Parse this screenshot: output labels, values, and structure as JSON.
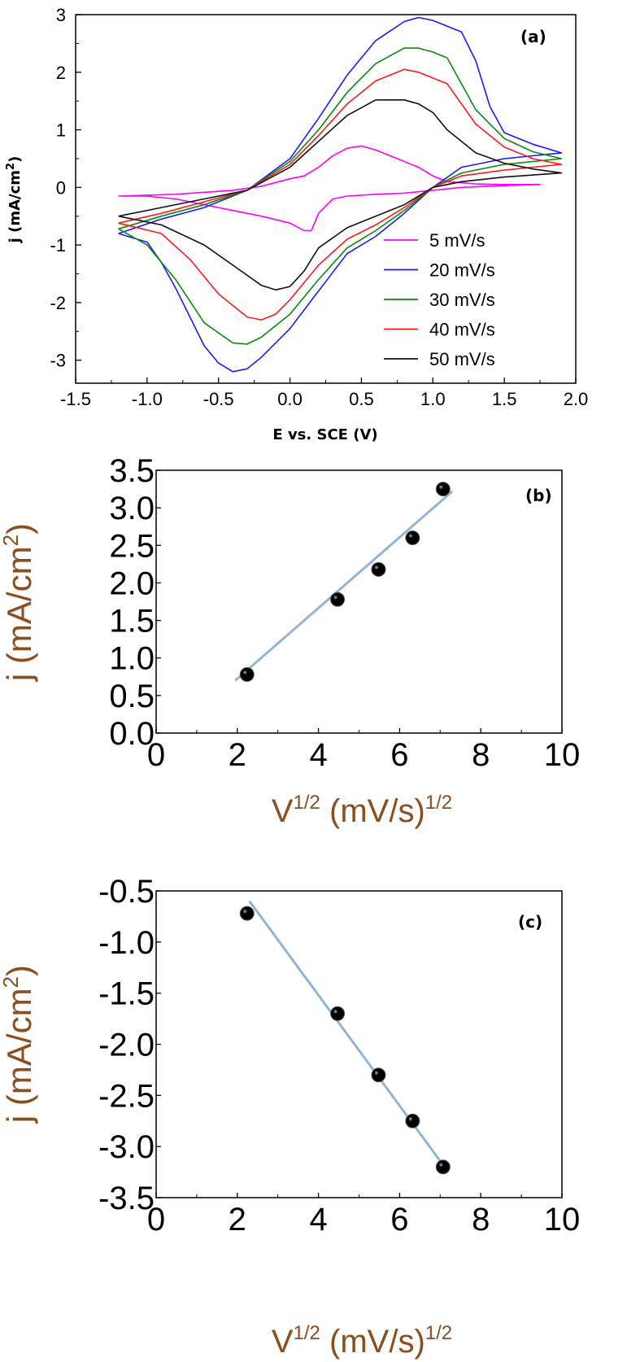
{
  "colors": {
    "s5": "#ff00ff",
    "s20": "#1a1aff",
    "s30": "#0a8a0a",
    "s40": "#ff1a1a",
    "s50": "#111111",
    "fit": "#92b4d8",
    "label_brown": "#8a4e1f"
  },
  "chart_data": [
    {
      "panel": "(a)",
      "type": "line",
      "xlabel": "E  vs. SCE (V)",
      "ylabel_main": "j (mA/cm",
      "ylabel_sup": "2",
      "ylabel_tail": ")",
      "xlim": [
        -1.5,
        2.0
      ],
      "ylim": [
        -3.4,
        3.0
      ],
      "xticks": [
        "-1.5",
        "-1.0",
        "-0.5",
        "0.0",
        "0.5",
        "1.0",
        "1.5",
        "2.0"
      ],
      "xtick_values": [
        -1.5,
        -1.0,
        -0.5,
        0.0,
        0.5,
        1.0,
        1.5,
        2.0
      ],
      "yticks": [
        "3",
        "2",
        "1",
        "0",
        "-1",
        "-2",
        "-3"
      ],
      "ytick_values": [
        3,
        2,
        1,
        0,
        -1,
        -2,
        -3
      ],
      "legend_position": "lower-right",
      "series": [
        {
          "name": "5 mV/s",
          "color_key": "s5",
          "x": [
            -1.2,
            -0.8,
            -0.4,
            -0.2,
            0.0,
            0.1,
            0.2,
            0.3,
            0.4,
            0.5,
            0.6,
            0.7,
            0.8,
            0.9,
            1.0,
            1.1,
            1.3,
            1.5,
            1.75,
            1.75,
            1.5,
            1.2,
            1.0,
            0.8,
            0.6,
            0.4,
            0.3,
            0.2,
            0.15,
            0.1,
            0.0,
            -0.2,
            -0.4,
            -0.6,
            -0.8,
            -1.0,
            -1.2
          ],
          "y": [
            -0.15,
            -0.12,
            -0.05,
            0.02,
            0.15,
            0.2,
            0.35,
            0.55,
            0.68,
            0.72,
            0.65,
            0.55,
            0.45,
            0.35,
            0.2,
            0.1,
            0.06,
            0.05,
            0.05,
            0.05,
            0.03,
            0.0,
            -0.05,
            -0.1,
            -0.12,
            -0.15,
            -0.2,
            -0.45,
            -0.75,
            -0.75,
            -0.62,
            -0.5,
            -0.4,
            -0.3,
            -0.2,
            -0.15,
            -0.15
          ]
        },
        {
          "name": "20 mV/s",
          "color_key": "s20",
          "x": [
            -1.2,
            -0.9,
            -0.6,
            -0.3,
            0.0,
            0.2,
            0.4,
            0.6,
            0.8,
            0.9,
            1.0,
            1.2,
            1.3,
            1.4,
            1.5,
            1.7,
            1.9,
            1.9,
            1.5,
            1.2,
            1.0,
            0.8,
            0.6,
            0.4,
            0.2,
            0.0,
            -0.2,
            -0.3,
            -0.4,
            -0.5,
            -0.6,
            -0.7,
            -0.8,
            -0.9,
            -1.0,
            -1.2
          ],
          "y": [
            -0.8,
            -0.55,
            -0.35,
            -0.05,
            0.5,
            1.2,
            1.95,
            2.55,
            2.88,
            2.95,
            2.9,
            2.7,
            2.2,
            1.4,
            0.95,
            0.75,
            0.6,
            0.6,
            0.5,
            0.35,
            0.0,
            -0.45,
            -0.85,
            -1.15,
            -1.8,
            -2.45,
            -2.95,
            -3.15,
            -3.2,
            -3.05,
            -2.75,
            -2.25,
            -1.75,
            -1.3,
            -0.95,
            -0.8
          ]
        },
        {
          "name": "30 mV/s",
          "color_key": "s30",
          "x": [
            -1.2,
            -0.9,
            -0.6,
            -0.3,
            0.0,
            0.2,
            0.4,
            0.6,
            0.8,
            0.9,
            1.0,
            1.1,
            1.3,
            1.5,
            1.7,
            1.9,
            1.9,
            1.5,
            1.2,
            1.0,
            0.8,
            0.6,
            0.4,
            0.2,
            0.0,
            -0.2,
            -0.3,
            -0.4,
            -0.6,
            -0.8,
            -1.0,
            -1.2
          ],
          "y": [
            -0.72,
            -0.5,
            -0.3,
            -0.05,
            0.45,
            1.0,
            1.65,
            2.15,
            2.42,
            2.42,
            2.35,
            2.25,
            1.35,
            0.85,
            0.62,
            0.5,
            0.5,
            0.4,
            0.25,
            0.0,
            -0.4,
            -0.75,
            -1.05,
            -1.6,
            -2.2,
            -2.6,
            -2.72,
            -2.7,
            -2.35,
            -1.6,
            -1.0,
            -0.72
          ]
        },
        {
          "name": "40 mV/s",
          "color_key": "s40",
          "x": [
            -1.2,
            -0.9,
            -0.6,
            -0.3,
            0.0,
            0.2,
            0.4,
            0.6,
            0.8,
            0.9,
            1.0,
            1.1,
            1.3,
            1.5,
            1.7,
            1.9,
            1.9,
            1.5,
            1.2,
            1.0,
            0.8,
            0.6,
            0.4,
            0.2,
            0.0,
            -0.1,
            -0.2,
            -0.3,
            -0.5,
            -0.7,
            -0.9,
            -1.2
          ],
          "y": [
            -0.62,
            -0.45,
            -0.25,
            -0.05,
            0.4,
            0.9,
            1.45,
            1.85,
            2.05,
            2.0,
            1.9,
            1.8,
            1.1,
            0.7,
            0.5,
            0.4,
            0.4,
            0.3,
            0.2,
            0.0,
            -0.35,
            -0.65,
            -0.9,
            -1.35,
            -1.95,
            -2.2,
            -2.3,
            -2.25,
            -1.85,
            -1.25,
            -0.8,
            -0.62
          ]
        },
        {
          "name": "50 mV/s",
          "color_key": "s50",
          "x": [
            -1.2,
            -0.9,
            -0.6,
            -0.3,
            0.0,
            0.2,
            0.4,
            0.6,
            0.8,
            0.9,
            1.0,
            1.1,
            1.3,
            1.5,
            1.7,
            1.9,
            1.9,
            1.5,
            1.2,
            1.0,
            0.8,
            0.6,
            0.4,
            0.2,
            0.1,
            0.0,
            -0.1,
            -0.2,
            -0.4,
            -0.6,
            -0.9,
            -1.2
          ],
          "y": [
            -0.5,
            -0.35,
            -0.2,
            -0.05,
            0.35,
            0.8,
            1.25,
            1.52,
            1.52,
            1.45,
            1.3,
            1.0,
            0.6,
            0.42,
            0.32,
            0.25,
            0.25,
            0.18,
            0.1,
            0.0,
            -0.3,
            -0.5,
            -0.7,
            -1.05,
            -1.45,
            -1.72,
            -1.78,
            -1.7,
            -1.35,
            -1.0,
            -0.65,
            -0.5
          ]
        }
      ]
    },
    {
      "panel": "(b)",
      "type": "scatter",
      "xlabel_main": "V",
      "xlabel_sup": "1/2",
      "xlabel_mid": " (mV/s)",
      "xlabel_sup2": "1/2",
      "ylabel_main": "j (mA/cm",
      "ylabel_sup": "2",
      "ylabel_tail": ")",
      "xlim": [
        0,
        10
      ],
      "ylim": [
        0.0,
        3.5
      ],
      "xticks": [
        "0",
        "2",
        "4",
        "6",
        "8",
        "10"
      ],
      "xtick_values": [
        0,
        2,
        4,
        6,
        8,
        10
      ],
      "yticks": [
        "3.5",
        "3.0",
        "2.5",
        "2.0",
        "1.5",
        "1.0",
        "0.5",
        "0.0"
      ],
      "ytick_values": [
        3.5,
        3.0,
        2.5,
        2.0,
        1.5,
        1.0,
        0.5,
        0.0
      ],
      "points": {
        "x": [
          2.24,
          4.47,
          5.48,
          6.32,
          7.07
        ],
        "y": [
          0.78,
          1.78,
          2.18,
          2.6,
          3.25
        ]
      },
      "fit": {
        "x": [
          1.95,
          7.3
        ],
        "y": [
          0.7,
          3.22
        ]
      }
    },
    {
      "panel": "(c)",
      "type": "scatter",
      "xlabel_main": "V",
      "xlabel_sup": "1/2",
      "xlabel_mid": " (mV/s)",
      "xlabel_sup2": "1/2",
      "ylabel_main": "j (mA/cm",
      "ylabel_sup": "2",
      "ylabel_tail": ")",
      "xlim": [
        0,
        10
      ],
      "ylim": [
        -3.5,
        -0.5
      ],
      "xticks": [
        "0",
        "2",
        "4",
        "6",
        "8",
        "10"
      ],
      "xtick_values": [
        0,
        2,
        4,
        6,
        8,
        10
      ],
      "yticks": [
        "-0.5",
        "-1.0",
        "-1.5",
        "-2.0",
        "-2.5",
        "-3.0",
        "-3.5"
      ],
      "ytick_values": [
        -0.5,
        -1.0,
        -1.5,
        -2.0,
        -2.5,
        -3.0,
        -3.5
      ],
      "points": {
        "x": [
          2.24,
          4.47,
          5.48,
          6.32,
          7.07
        ],
        "y": [
          -0.72,
          -1.7,
          -2.3,
          -2.75,
          -3.2
        ]
      },
      "fit": {
        "x": [
          2.3,
          7.2
        ],
        "y": [
          -0.6,
          -3.25
        ]
      }
    }
  ]
}
